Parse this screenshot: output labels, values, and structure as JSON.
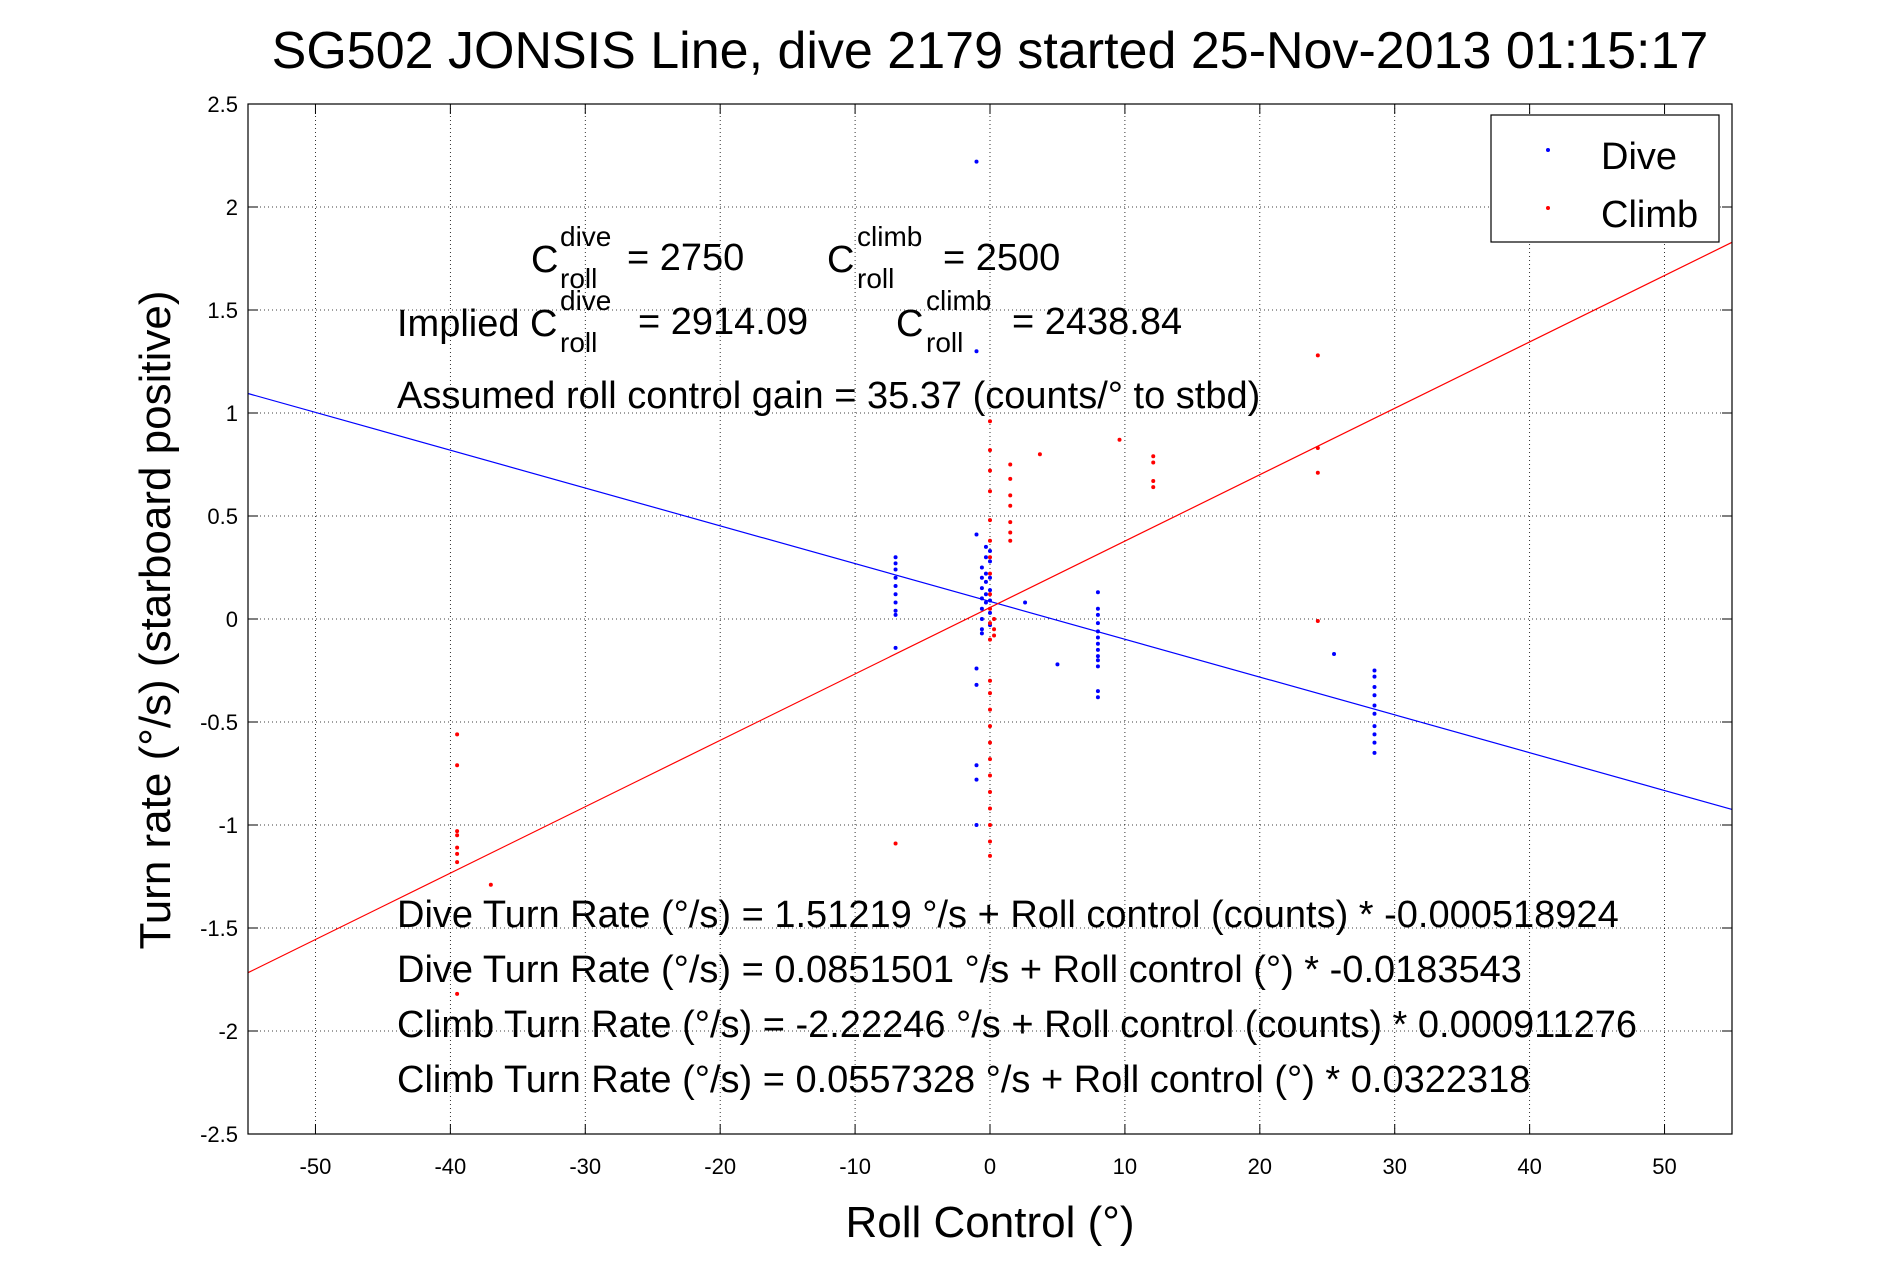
{
  "chart_data": {
    "type": "scatter",
    "title": "SG502 JONSIS Line, dive 2179 started 25-Nov-2013 01:15:17",
    "xlabel": "Roll Control (°)",
    "ylabel": "Turn rate (°/s)  (starboard positive)",
    "xlim": [
      -55,
      55
    ],
    "ylim": [
      -2.5,
      2.5
    ],
    "xticks": [
      -50,
      -40,
      -30,
      -20,
      -10,
      0,
      10,
      20,
      30,
      40,
      50
    ],
    "xtick_labels": [
      "-50",
      "-40",
      "-30",
      "-20",
      "-10",
      "0",
      "10",
      "20",
      "30",
      "40",
      "50"
    ],
    "yticks": [
      -2.5,
      -2,
      -1.5,
      -1,
      -0.5,
      0,
      0.5,
      1,
      1.5,
      2,
      2.5
    ],
    "ytick_labels": [
      "-2.5",
      "-2",
      "-1.5",
      "-1",
      "-0.5",
      "0",
      "0.5",
      "1",
      "1.5",
      "2",
      "2.5"
    ],
    "grid": true,
    "legend_position": "top-right",
    "colors": {
      "dive": "#0000ff",
      "climb": "#ff0000"
    },
    "series": [
      {
        "name": "Dive",
        "color": "#0000ff",
        "points": [
          [
            -7,
            0.3
          ],
          [
            -7,
            0.27
          ],
          [
            -7,
            0.24
          ],
          [
            -7,
            0.2
          ],
          [
            -7,
            0.16
          ],
          [
            -7,
            0.12
          ],
          [
            -7,
            0.08
          ],
          [
            -7,
            0.04
          ],
          [
            -7,
            0.02
          ],
          [
            -7,
            -0.14
          ],
          [
            -1,
            2.22
          ],
          [
            -1,
            0.41
          ],
          [
            -1,
            -0.24
          ],
          [
            -1,
            -0.32
          ],
          [
            -1,
            -0.71
          ],
          [
            -1,
            -0.78
          ],
          [
            -1,
            -1.0
          ],
          [
            -1,
            1.3
          ],
          [
            -0.6,
            0.25
          ],
          [
            -0.6,
            0.2
          ],
          [
            -0.6,
            0.15
          ],
          [
            -0.6,
            0.1
          ],
          [
            -0.6,
            0.05
          ],
          [
            -0.6,
            0.0
          ],
          [
            -0.6,
            -0.05
          ],
          [
            -0.6,
            -0.07
          ],
          [
            -0.3,
            0.35
          ],
          [
            -0.3,
            0.3
          ],
          [
            -0.3,
            0.22
          ],
          [
            -0.3,
            0.18
          ],
          [
            -0.3,
            0.12
          ],
          [
            -0.3,
            0.08
          ],
          [
            0,
            0.33
          ],
          [
            0,
            0.28
          ],
          [
            0,
            0.2
          ],
          [
            0,
            0.14
          ],
          [
            0,
            0.09
          ],
          [
            0,
            0.03
          ],
          [
            0,
            -0.03
          ],
          [
            2.6,
            0.08
          ],
          [
            5,
            -0.22
          ],
          [
            8,
            0.13
          ],
          [
            8,
            0.05
          ],
          [
            8,
            0.02
          ],
          [
            8,
            -0.02
          ],
          [
            8,
            -0.06
          ],
          [
            8,
            -0.09
          ],
          [
            8,
            -0.12
          ],
          [
            8,
            -0.15
          ],
          [
            8,
            -0.18
          ],
          [
            8,
            -0.2
          ],
          [
            8,
            -0.23
          ],
          [
            8,
            -0.35
          ],
          [
            8,
            -0.38
          ],
          [
            25.5,
            -0.17
          ],
          [
            28.5,
            -0.25
          ],
          [
            28.5,
            -0.28
          ],
          [
            28.5,
            -0.33
          ],
          [
            28.5,
            -0.37
          ],
          [
            28.5,
            -0.42
          ],
          [
            28.5,
            -0.46
          ],
          [
            28.5,
            -0.52
          ],
          [
            28.5,
            -0.56
          ],
          [
            28.5,
            -0.6
          ],
          [
            28.5,
            -0.65
          ]
        ],
        "fit_line": {
          "intercept": 0.0851501,
          "slope": -0.0183543
        }
      },
      {
        "name": "Climb",
        "color": "#ff0000",
        "points": [
          [
            -39.5,
            -0.56
          ],
          [
            -39.5,
            -0.71
          ],
          [
            -39.5,
            -1.03
          ],
          [
            -39.5,
            -1.05
          ],
          [
            -39.5,
            -1.11
          ],
          [
            -39.5,
            -1.14
          ],
          [
            -39.5,
            -1.18
          ],
          [
            -39.5,
            -1.82
          ],
          [
            -37,
            -1.29
          ],
          [
            -7,
            -1.09
          ],
          [
            0,
            0.96
          ],
          [
            0,
            0.82
          ],
          [
            0,
            0.72
          ],
          [
            0,
            0.62
          ],
          [
            0,
            0.48
          ],
          [
            0,
            0.38
          ],
          [
            0,
            0.3
          ],
          [
            0,
            0.22
          ],
          [
            0,
            0.12
          ],
          [
            0,
            0.05
          ],
          [
            0,
            -0.02
          ],
          [
            0,
            -0.1
          ],
          [
            0,
            -0.3
          ],
          [
            0,
            -0.36
          ],
          [
            0,
            -0.44
          ],
          [
            0,
            -0.52
          ],
          [
            0,
            -0.6
          ],
          [
            0,
            -0.68
          ],
          [
            0,
            -0.76
          ],
          [
            0,
            -0.84
          ],
          [
            0,
            -0.92
          ],
          [
            0,
            -1.0
          ],
          [
            0,
            -1.08
          ],
          [
            0,
            -1.15
          ],
          [
            0.3,
            0.0
          ],
          [
            0.3,
            -0.05
          ],
          [
            0.3,
            -0.08
          ],
          [
            1.5,
            0.75
          ],
          [
            1.5,
            0.68
          ],
          [
            1.5,
            0.6
          ],
          [
            1.5,
            0.55
          ],
          [
            1.5,
            0.47
          ],
          [
            1.5,
            0.42
          ],
          [
            1.5,
            0.38
          ],
          [
            3.7,
            0.8
          ],
          [
            9.6,
            0.87
          ],
          [
            12.1,
            0.79
          ],
          [
            12.1,
            0.76
          ],
          [
            12.1,
            0.67
          ],
          [
            12.1,
            0.64
          ],
          [
            24.3,
            1.28
          ],
          [
            24.3,
            0.83
          ],
          [
            24.3,
            0.71
          ],
          [
            24.3,
            -0.01
          ]
        ],
        "fit_line": {
          "intercept": 0.0557328,
          "slope": 0.0322318
        }
      }
    ],
    "annotations": {
      "c_roll_dive": "= 2750",
      "c_roll_climb": "= 2500",
      "implied_prefix": "Implied C",
      "implied_dive": "= 2914.09",
      "implied_climb": "= 2438.84",
      "gain": "Assumed roll control gain = 35.37 (counts/° to stbd)",
      "eq1": "Dive Turn Rate (°/s) = 1.51219 °/s + Roll control (counts) * -0.000518924",
      "eq2": "Dive Turn Rate (°/s) = 0.0851501 °/s + Roll control (°) * -0.0183543",
      "eq3": "Climb Turn Rate (°/s) = -2.22246 °/s + Roll control (counts) * 0.000911276",
      "eq4": "Climb Turn Rate (°/s) = 0.0557328 °/s + Roll control (°) * 0.0322318",
      "c_letter": "C",
      "sup_dive": "dive",
      "sup_climb": "climb",
      "sub_roll": "roll"
    }
  }
}
